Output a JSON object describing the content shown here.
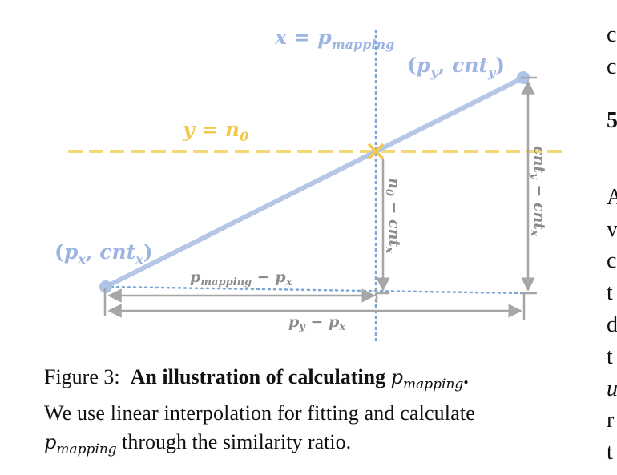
{
  "diagram": {
    "colors": {
      "blue_line": "#b4c7e7",
      "blue_dot": "#aec3e6",
      "blue_dotted": "#7aa6d6",
      "blue_label": "#9db5e0",
      "yellow": "#f5d77a",
      "yellow_label": "#f2c94c",
      "gray": "#a6a6a6",
      "gray_label": "#8c8c8c"
    },
    "labels": {
      "x_line": {
        "lhs": "x",
        "eq": " = ",
        "var": "p",
        "sub": "mapping"
      },
      "y_line": {
        "lhs": "y",
        "eq": " = ",
        "var": "n",
        "sub": "0"
      },
      "point_y": {
        "open": "(",
        "v1": "p",
        "s1": "y",
        "comma": ", ",
        "v2": "cnt",
        "s2": "y",
        "close": ")"
      },
      "point_x": {
        "open": "(",
        "v1": "p",
        "s1": "x",
        "comma": ", ",
        "v2": "cnt",
        "s2": "x",
        "close": ")"
      },
      "dx_mapping": {
        "v1": "p",
        "s1": "mapping",
        "op": " − ",
        "v2": "p",
        "s2": "x"
      },
      "dx_total": {
        "v1": "p",
        "s1": "y",
        "op": " − ",
        "v2": "p",
        "s2": "x"
      },
      "dy_mapping": {
        "v1": "n",
        "s1": "0",
        "op": " − ",
        "v2": "cnt",
        "s2": "x"
      },
      "dy_total": {
        "v1": "cnt",
        "s1": "y",
        "op": " − ",
        "v2": "cnt",
        "s2": "x"
      }
    }
  },
  "caption": {
    "prefix": "Figure 3:",
    "bold": "An illustration of calculating",
    "math1": "p",
    "math1_sub": "mapping",
    "period": ".",
    "line2": "We use linear interpolation for fitting and calculate",
    "math2": "p",
    "math2_sub": "mapping",
    "line3_rest": " through the similarity ratio."
  },
  "right_column_fragments": [
    "c",
    "c",
    "5",
    "A",
    "v",
    "c",
    "t",
    "d",
    "t",
    "u",
    "r",
    "t"
  ]
}
